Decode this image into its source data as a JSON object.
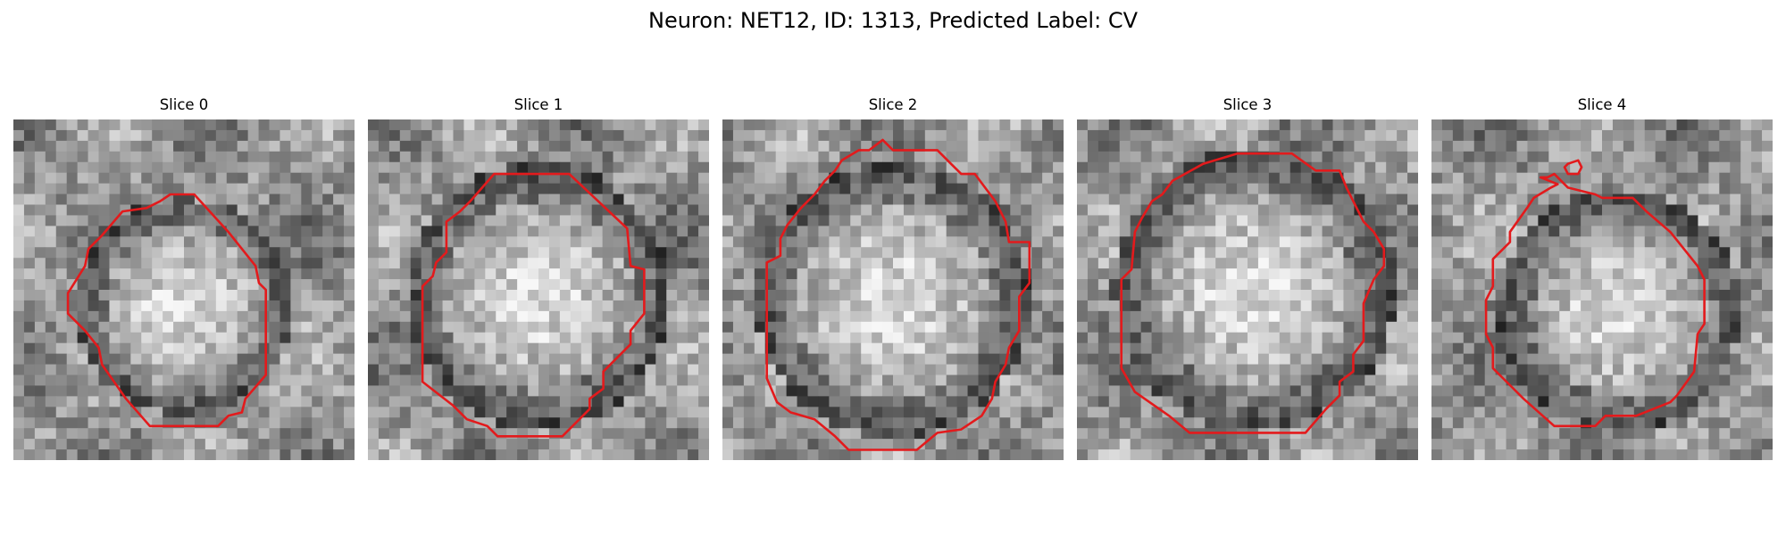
{
  "figure": {
    "title": "Neuron: NET12, ID: 1313, Predicted Label: CV"
  },
  "panels": [
    {
      "title": "Slice 0"
    },
    {
      "title": "Slice 1"
    },
    {
      "title": "Slice 2"
    },
    {
      "title": "Slice 3"
    },
    {
      "title": "Slice 4"
    }
  ],
  "colors": {
    "contour": "#e31a1c",
    "background": "#ffffff"
  }
}
